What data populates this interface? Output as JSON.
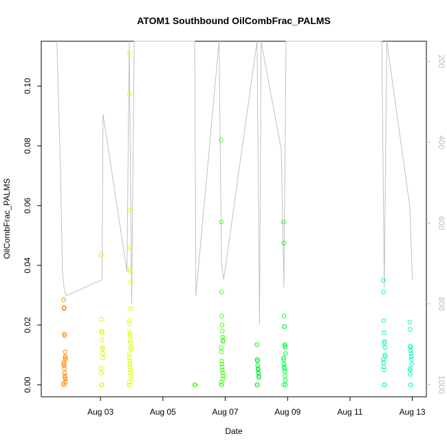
{
  "chart_data": {
    "type": "scatter",
    "title": "ATOM1 Southbound OilCombFrac_PALMS",
    "xlabel": "Date",
    "ylabel": "OilCombFrac_PALMS",
    "x_ticks": [
      "Aug 03",
      "Aug 05",
      "Aug 07",
      "Aug 09",
      "Aug 11",
      "Aug 13"
    ],
    "x_tick_days": [
      3,
      5,
      7,
      9,
      11,
      13
    ],
    "xlim_days": [
      1.1,
      13.45
    ],
    "y_ticks": [
      "0.00",
      "0.02",
      "0.04",
      "0.06",
      "0.08",
      "0.10"
    ],
    "y_tick_values": [
      0,
      0.02,
      0.04,
      0.06,
      0.08,
      0.1
    ],
    "ylim": [
      -0.004,
      0.115
    ],
    "y2_ticks": [
      "200",
      "400",
      "600",
      "800",
      "1000"
    ],
    "y2_tick_values": [
      200,
      400,
      600,
      800,
      1000
    ],
    "y2lim": [
      1030,
      150
    ],
    "y2_axis_color": "#bdbdbd",
    "grid": false,
    "point_colors": {
      "Aug 01": "#ff8c00",
      "Aug 03": "#e5ef00",
      "Aug 04": "#e2ff00",
      "Aug 06": "#3aff00",
      "Aug 07": "#40ff10",
      "Aug 08": "#00e82a",
      "Aug 09": "#00ff3c",
      "Aug 12": "#00ffaa",
      "Aug 13": "#00ffc0"
    },
    "series": [
      {
        "day": 1.85,
        "color": "#ff8c00",
        "values": [
          0.0285,
          0.0255,
          0.0258,
          0.017,
          0.0165,
          0.011,
          0.0095,
          0.009,
          0.0085,
          0.0075,
          0.007,
          0.0065,
          0.0055,
          0.004,
          0.003,
          0.0025,
          0.002,
          0.001,
          0.0005,
          0.0
        ]
      },
      {
        "day": 3.05,
        "color": "#e5ef00",
        "values": [
          0.0435,
          0.022,
          0.018,
          0.0175,
          0.015,
          0.0125,
          0.012,
          0.0105,
          0.009,
          0.0055,
          0.004,
          0.0,
          0.0
        ]
      },
      {
        "day": 3.95,
        "color": "#e2ff00",
        "values": [
          0.111,
          0.0975,
          0.0585,
          0.046,
          0.0385,
          0.038,
          0.0345,
          0.0255,
          0.0255,
          0.0215,
          0.0205,
          0.0175,
          0.017,
          0.0165,
          0.015,
          0.014,
          0.0125,
          0.012,
          0.0105,
          0.009,
          0.008,
          0.007,
          0.006,
          0.005,
          0.004,
          0.003,
          0.002,
          0.001,
          0.0,
          0.0
        ]
      },
      {
        "day": 6.05,
        "color": "#3aff00",
        "values": [
          0.0,
          0.0,
          0.0
        ]
      },
      {
        "day": 6.9,
        "color": "#40ff10",
        "values": [
          0.082,
          0.0545,
          0.031,
          0.023,
          0.02,
          0.018,
          0.016,
          0.015,
          0.0145,
          0.0125,
          0.011,
          0.008,
          0.007,
          0.006,
          0.005,
          0.004,
          0.003,
          0.002,
          0.001,
          0.0,
          0.0
        ]
      },
      {
        "day": 8.05,
        "color": "#00e82a",
        "values": [
          0.0135,
          0.0085,
          0.008,
          0.0065,
          0.0055,
          0.005,
          0.004,
          0.003,
          0.0025,
          0.0,
          0.0
        ]
      },
      {
        "day": 8.9,
        "color": "#00ff3c",
        "values": [
          0.0545,
          0.0475,
          0.023,
          0.0195,
          0.0195,
          0.0135,
          0.013,
          0.0125,
          0.0105,
          0.009,
          0.0085,
          0.007,
          0.006,
          0.0055,
          0.0045,
          0.003,
          0.0015,
          0.0,
          0.0
        ]
      },
      {
        "day": 12.1,
        "color": "#00ffaa",
        "values": [
          0.035,
          0.031,
          0.0215,
          0.0175,
          0.0145,
          0.014,
          0.0125,
          0.01,
          0.0095,
          0.0085,
          0.0075,
          0.006,
          0.005,
          0.0,
          0.0
        ]
      },
      {
        "day": 12.95,
        "color": "#00ffc0",
        "values": [
          0.021,
          0.0185,
          0.013,
          0.0125,
          0.0115,
          0.0105,
          0.0095,
          0.0085,
          0.007,
          0.0055,
          0.005,
          0.0035,
          0.0,
          0.0
        ]
      }
    ],
    "altitude_series": {
      "name": "",
      "color": "#c0c0c0",
      "x_days": [
        1.6,
        1.72,
        1.78,
        1.83,
        1.9,
        3.05,
        3.08,
        3.85,
        3.92,
        4.0,
        4.08,
        6.02,
        6.06,
        6.8,
        6.88,
        6.95,
        8.02,
        8.1,
        8.15,
        8.8,
        8.88,
        8.95,
        12.02,
        12.1,
        12.18,
        12.92,
        13.0
      ],
      "y_meters": [
        150,
        480,
        720,
        760,
        780,
        740,
        330,
        720,
        150,
        800,
        150,
        150,
        780,
        150,
        700,
        740,
        150,
        850,
        150,
        420,
        760,
        150,
        150,
        760,
        140,
        560,
        740
      ]
    }
  }
}
